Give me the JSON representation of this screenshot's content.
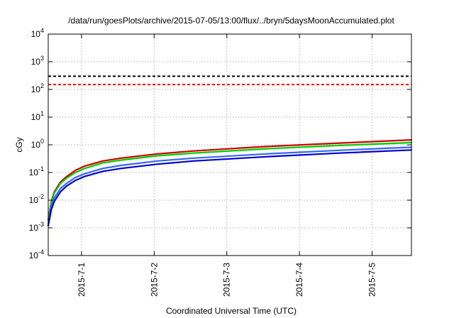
{
  "chart_data": {
    "type": "line",
    "title": "/data/run/goesPlots/archive/2015-07-05/13:00/flux/../bryn/5daysMoonAccumulated.plot",
    "xlabel": "Coordinated Universal Time (UTC)",
    "ylabel": "cGy",
    "yscale": "log",
    "ylim": [
      0.0001,
      10000
    ],
    "xlim": [
      "2015-06-30T13:00",
      "2015-07-05T13:00"
    ],
    "grid": true,
    "x_ticks": [
      {
        "x": "2015-07-01T00:00",
        "label": "2015-7-1"
      },
      {
        "x": "2015-07-02T00:00",
        "label": "2015-7-2"
      },
      {
        "x": "2015-07-03T00:00",
        "label": "2015-7-3"
      },
      {
        "x": "2015-07-04T00:00",
        "label": "2015-7-4"
      },
      {
        "x": "2015-07-05T00:00",
        "label": "2015-7-5"
      }
    ],
    "y_ticks": [
      {
        "value": 0.0001,
        "base": "10",
        "exp": "-4"
      },
      {
        "value": 0.001,
        "base": "10",
        "exp": "-3"
      },
      {
        "value": 0.01,
        "base": "10",
        "exp": "-2"
      },
      {
        "value": 0.1,
        "base": "10",
        "exp": "-1"
      },
      {
        "value": 1,
        "base": "10",
        "exp": "0"
      },
      {
        "value": 10,
        "base": "10",
        "exp": "1"
      },
      {
        "value": 100,
        "base": "10",
        "exp": "2"
      },
      {
        "value": 1000,
        "base": "10",
        "exp": "3"
      },
      {
        "value": 10000,
        "base": "10",
        "exp": "4"
      }
    ],
    "thresholds": [
      {
        "value": 300,
        "color": "#000000",
        "style": "dashed"
      },
      {
        "value": 150,
        "color": "#ff0000",
        "style": "dashed"
      }
    ],
    "series": [
      {
        "color": "#cc0000",
        "x": [
          "2015-06-30T13:00",
          "2015-06-30T14:00",
          "2015-06-30T15:00",
          "2015-06-30T17:00",
          "2015-06-30T19:00",
          "2015-06-30T22:00",
          "2015-07-01T01:00",
          "2015-07-01T07:00",
          "2015-07-01T13:00",
          "2015-07-02T01:00",
          "2015-07-02T13:00",
          "2015-07-03T13:00",
          "2015-07-04T13:00",
          "2015-07-05T13:00"
        ],
        "y": [
          0.002,
          0.009,
          0.02,
          0.045,
          0.07,
          0.12,
          0.17,
          0.26,
          0.33,
          0.47,
          0.6,
          0.87,
          1.15,
          1.5
        ]
      },
      {
        "color": "#00cc00",
        "x": [
          "2015-06-30T13:00",
          "2015-06-30T14:00",
          "2015-06-30T15:00",
          "2015-06-30T17:00",
          "2015-06-30T19:00",
          "2015-06-30T22:00",
          "2015-07-01T01:00",
          "2015-07-01T07:00",
          "2015-07-01T13:00",
          "2015-07-02T01:00",
          "2015-07-02T13:00",
          "2015-07-03T13:00",
          "2015-07-04T13:00",
          "2015-07-05T13:00"
        ],
        "y": [
          0.0018,
          0.008,
          0.018,
          0.04,
          0.062,
          0.1,
          0.14,
          0.22,
          0.28,
          0.4,
          0.5,
          0.72,
          0.95,
          1.2
        ]
      },
      {
        "color": "#3366ff",
        "x": [
          "2015-06-30T13:00",
          "2015-06-30T14:00",
          "2015-06-30T15:00",
          "2015-06-30T17:00",
          "2015-06-30T19:00",
          "2015-06-30T22:00",
          "2015-07-01T01:00",
          "2015-07-01T07:00",
          "2015-07-01T13:00",
          "2015-07-02T01:00",
          "2015-07-02T13:00",
          "2015-07-03T13:00",
          "2015-07-04T13:00",
          "2015-07-05T13:00"
        ],
        "y": [
          0.0014,
          0.006,
          0.012,
          0.026,
          0.04,
          0.066,
          0.09,
          0.14,
          0.18,
          0.26,
          0.33,
          0.47,
          0.63,
          0.82
        ]
      },
      {
        "color": "#0000cc",
        "x": [
          "2015-06-30T13:00",
          "2015-06-30T14:00",
          "2015-06-30T15:00",
          "2015-06-30T17:00",
          "2015-06-30T19:00",
          "2015-06-30T22:00",
          "2015-07-01T01:00",
          "2015-07-01T07:00",
          "2015-07-01T13:00",
          "2015-07-02T01:00",
          "2015-07-02T13:00",
          "2015-07-03T13:00",
          "2015-07-04T13:00",
          "2015-07-05T13:00"
        ],
        "y": [
          0.0012,
          0.0045,
          0.009,
          0.02,
          0.032,
          0.052,
          0.072,
          0.11,
          0.14,
          0.2,
          0.26,
          0.37,
          0.5,
          0.65
        ]
      }
    ]
  }
}
